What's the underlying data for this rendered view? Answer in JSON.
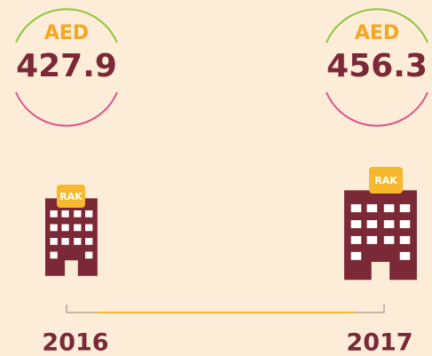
{
  "items": [
    {
      "currency": "AED",
      "value": "427.9",
      "badge": "RAK",
      "year": "2016"
    },
    {
      "currency": "AED",
      "value": "456.3",
      "badge": "RAK",
      "year": "2017"
    }
  ]
}
